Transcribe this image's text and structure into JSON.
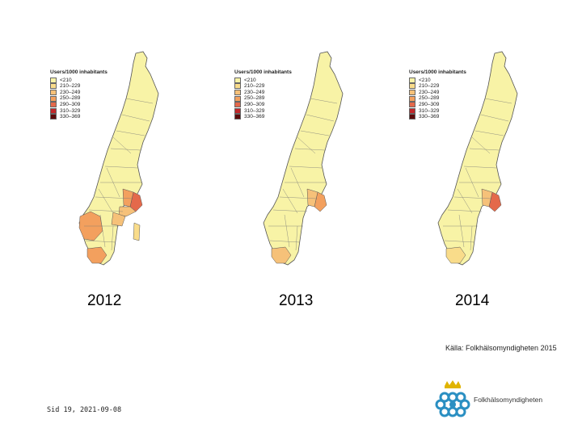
{
  "legend": {
    "title": "Users/1000 inhabitants",
    "categories": [
      {
        "label": "<210",
        "color": "#f8f3a6"
      },
      {
        "label": "210–229",
        "color": "#f9dc8a"
      },
      {
        "label": "230–249",
        "color": "#f6c179"
      },
      {
        "label": "250–289",
        "color": "#f3a05e"
      },
      {
        "label": "290–309",
        "color": "#e4694b"
      },
      {
        "label": "310–329",
        "color": "#c2272a"
      },
      {
        "label": "330–369",
        "color": "#5c0b0b"
      }
    ]
  },
  "maps": [
    {
      "year": "2012",
      "highlights": [
        {
          "region": "stockholm",
          "category": 4
        },
        {
          "region": "uppsala",
          "category": 3
        },
        {
          "region": "sodermanland",
          "category": 2
        },
        {
          "region": "ostergotland",
          "category": 2
        },
        {
          "region": "vastra-gotaland",
          "category": 3
        },
        {
          "region": "skane",
          "category": 3
        },
        {
          "region": "gotland",
          "category": 1
        }
      ]
    },
    {
      "year": "2013",
      "highlights": [
        {
          "region": "stockholm",
          "category": 3
        },
        {
          "region": "uppsala",
          "category": 2
        },
        {
          "region": "skane",
          "category": 2
        }
      ]
    },
    {
      "year": "2014",
      "highlights": [
        {
          "region": "stockholm",
          "category": 4
        },
        {
          "region": "uppsala",
          "category": 2
        },
        {
          "region": "skane",
          "category": 1
        }
      ]
    }
  ],
  "source": "Källa: Folkhälsomyndigheten 2015",
  "footer": "Sid 19, 2021-09-08",
  "logo_text": "Folkhälsomyndigheten"
}
